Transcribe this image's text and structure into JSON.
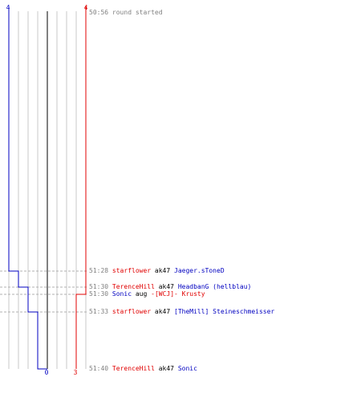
{
  "colors": {
    "team_a": "#0000c0",
    "team_b": "#e00000",
    "grid": "#c8c8c8",
    "center": "#808080",
    "time": "#808080",
    "weapon": "#000000"
  },
  "score_axis": {
    "team_a_top": "4",
    "team_b_top": "4",
    "team_a_final": "0",
    "team_b_final": "3",
    "team_a_start": 4,
    "team_b_start": 4
  },
  "events": [
    {
      "time": "50:56",
      "message": "round started"
    },
    {
      "time": "51:28",
      "killer": "starflower",
      "killer_team": "b",
      "weapon": "ak47",
      "victim": "Jaeger.sToneD",
      "victim_team": "a",
      "team_a": 3,
      "team_b": 4
    },
    {
      "time": "51:30",
      "killer": "TerenceHill",
      "killer_team": "b",
      "weapon": "ak47",
      "victim": "HeadbanG (hellblau)",
      "victim_team": "a",
      "team_a": 2,
      "team_b": 4
    },
    {
      "time": "51:30",
      "killer": "Sonic",
      "killer_team": "a",
      "weapon": "aug",
      "victim": "-[WCJ]- Krusty",
      "victim_team": "b",
      "team_a": 2,
      "team_b": 3
    },
    {
      "time": "51:33",
      "killer": "starflower",
      "killer_team": "b",
      "weapon": "ak47",
      "victim": "[TheMill] Steineschmeisser",
      "victim_team": "a",
      "team_a": 1,
      "team_b": 3
    },
    {
      "time": "51:40",
      "killer": "TerenceHill",
      "killer_team": "b",
      "weapon": "ak47",
      "victim": "Sonic",
      "victim_team": "a",
      "team_a": 0,
      "team_b": 3
    }
  ]
}
